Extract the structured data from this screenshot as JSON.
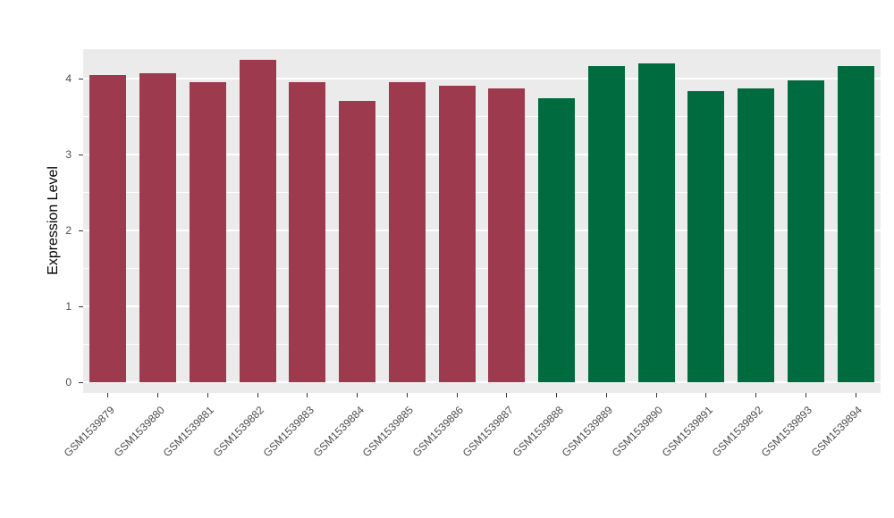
{
  "chart_data": {
    "type": "bar",
    "title": "",
    "xlabel": "",
    "ylabel": "Expression Level",
    "ylim": [
      0,
      4.45
    ],
    "yticks": [
      0,
      1,
      2,
      3,
      4
    ],
    "grid": "on",
    "legend": "none",
    "panel_bg": "#EBEBEB",
    "grid_color": "#FFFFFF",
    "categories": [
      "GSM1539879",
      "GSM1539880",
      "GSM1539881",
      "GSM1539882",
      "GSM1539883",
      "GSM1539884",
      "GSM1539885",
      "GSM1539886",
      "GSM1539887",
      "GSM1539888",
      "GSM1539889",
      "GSM1539890",
      "GSM1539891",
      "GSM1539892",
      "GSM1539893",
      "GSM1539894"
    ],
    "values": [
      4.05,
      4.07,
      3.95,
      4.25,
      3.95,
      3.71,
      3.95,
      3.91,
      3.87,
      3.74,
      4.17,
      4.2,
      3.84,
      3.87,
      3.98,
      4.16
    ],
    "bar_groups": [
      "group1",
      "group1",
      "group1",
      "group1",
      "group1",
      "group1",
      "group1",
      "group1",
      "group1",
      "group2",
      "group2",
      "group2",
      "group2",
      "group2",
      "group2",
      "group2"
    ],
    "group_colors": {
      "group1": "#9E3A4E",
      "group2": "#006B3E"
    }
  }
}
